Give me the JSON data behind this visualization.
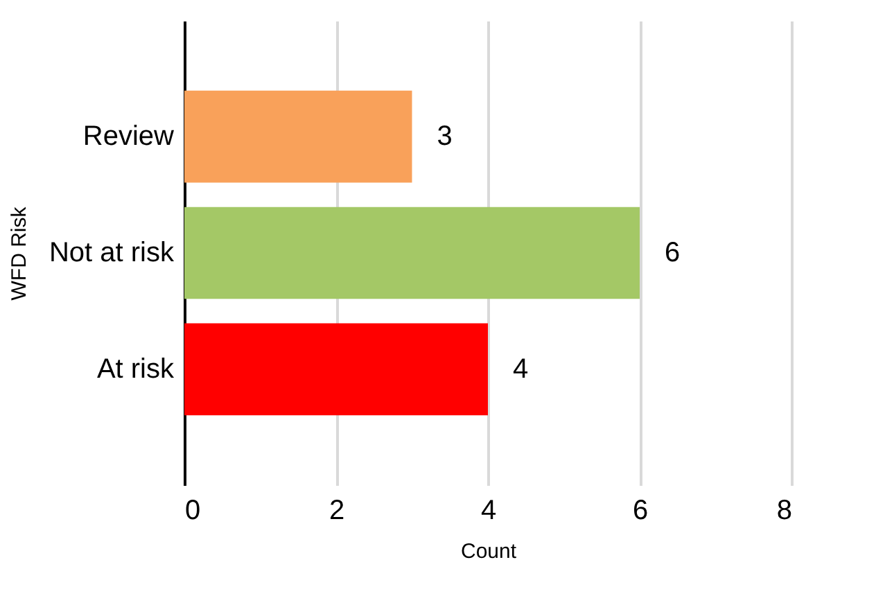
{
  "chart_data": {
    "type": "bar",
    "orientation": "horizontal",
    "categories": [
      "Review",
      "Not at risk",
      "At risk"
    ],
    "values": [
      3,
      6,
      4
    ],
    "colors": [
      "#f9a15a",
      "#a4c866",
      "#ff0000"
    ],
    "xlim": [
      0,
      8
    ],
    "xticks": [
      0,
      2,
      4,
      6,
      8
    ],
    "grid": "x",
    "data_labels": true,
    "xlabel": "Count",
    "ylabel": "WFD Risk"
  }
}
